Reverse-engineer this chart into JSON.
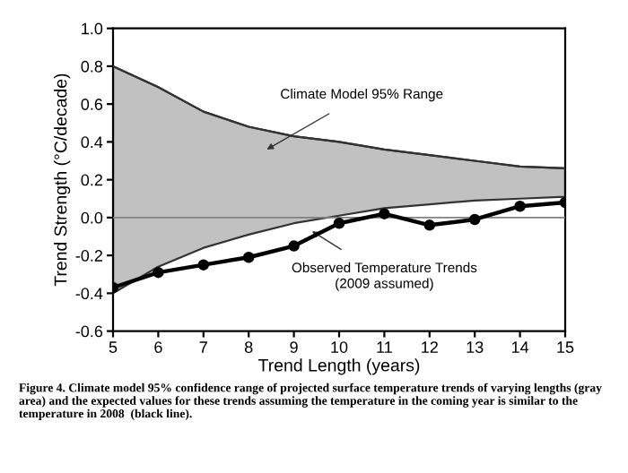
{
  "chart_data": {
    "type": "line",
    "xlabel": "Trend Length (years)",
    "ylabel": "Trend Strength (°C/decade)",
    "x": [
      5,
      6,
      7,
      8,
      9,
      10,
      11,
      12,
      13,
      14,
      15
    ],
    "series": [
      {
        "type": "line",
        "color": "#333333",
        "values": [
          0.8,
          0.69,
          0.56,
          0.48,
          0.43,
          0.4,
          0.36,
          0.33,
          0.3,
          0.27,
          0.26
        ],
        "lower": [
          -0.4,
          -0.26,
          -0.16,
          -0.09,
          -0.03,
          0.01,
          0.05,
          0.07,
          0.09,
          0.1,
          0.11
        ],
        "upper": [
          0.8,
          0.69,
          0.56,
          0.48,
          0.43,
          0.4,
          0.36,
          0.33,
          0.3,
          0.27,
          0.26
        ]
      },
      {
        "color": "#000000",
        "marker": "circle",
        "values": [
          -0.37,
          -0.29,
          -0.25,
          -0.21,
          -0.15,
          -0.03,
          0.02,
          -0.04,
          -0.01,
          0.06,
          0.08
        ]
      }
    ],
    "xlim": [
      5,
      15
    ],
    "xticks": [
      5,
      6,
      7,
      8,
      9,
      10,
      11,
      12,
      13,
      14,
      15
    ],
    "ylim": [
      -0.6,
      1.0
    ],
    "yticks": [
      {
        "value": -0.6,
        "label": "-0.6"
      },
      {
        "value": -0.4,
        "label": "-0.4"
      },
      {
        "value": -0.2,
        "label": "-0.2"
      },
      {
        "value": 0.0,
        "label": "0.0"
      },
      {
        "value": 0.2,
        "label": "0.2"
      },
      {
        "value": 0.4,
        "label": "0.4"
      },
      {
        "value": 0.6,
        "label": "0.6"
      },
      {
        "value": 0.8,
        "label": "0.8"
      },
      {
        "value": 1.0,
        "label": "1.0"
      }
    ],
    "ref_lines": [
      {
        "axis": "y",
        "value": 0,
        "color": "#808080"
      }
    ],
    "annotations": [
      "Climate Model 95% Range",
      "Observed Temperature Trends\n(2009 assumed)",
      "Figure 4. Climate model 95% confidence range of projected surface temperature trends of varying lengths (gray area) and the expected values for these trends assuming the temperature in the coming year is similar to the temperature in 2008  (black line)."
    ],
    "grid": false,
    "legend": false
  }
}
